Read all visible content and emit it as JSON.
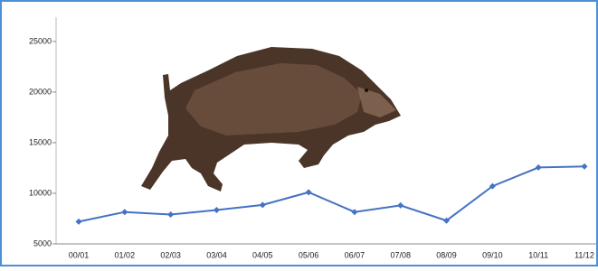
{
  "chart_data": {
    "type": "line",
    "categories": [
      "00/01",
      "01/02",
      "02/03",
      "03/04",
      "04/05",
      "05/06",
      "06/07",
      "07/08",
      "08/09",
      "09/10",
      "10/11",
      "11/12"
    ],
    "values": [
      7200,
      8150,
      7900,
      8350,
      8850,
      10100,
      8150,
      8800,
      7300,
      10700,
      12550,
      12650
    ],
    "color": "#4472c4",
    "ylim": [
      5000,
      27400
    ],
    "yticks": [
      5000,
      10000,
      15000,
      20000,
      25000
    ]
  }
}
